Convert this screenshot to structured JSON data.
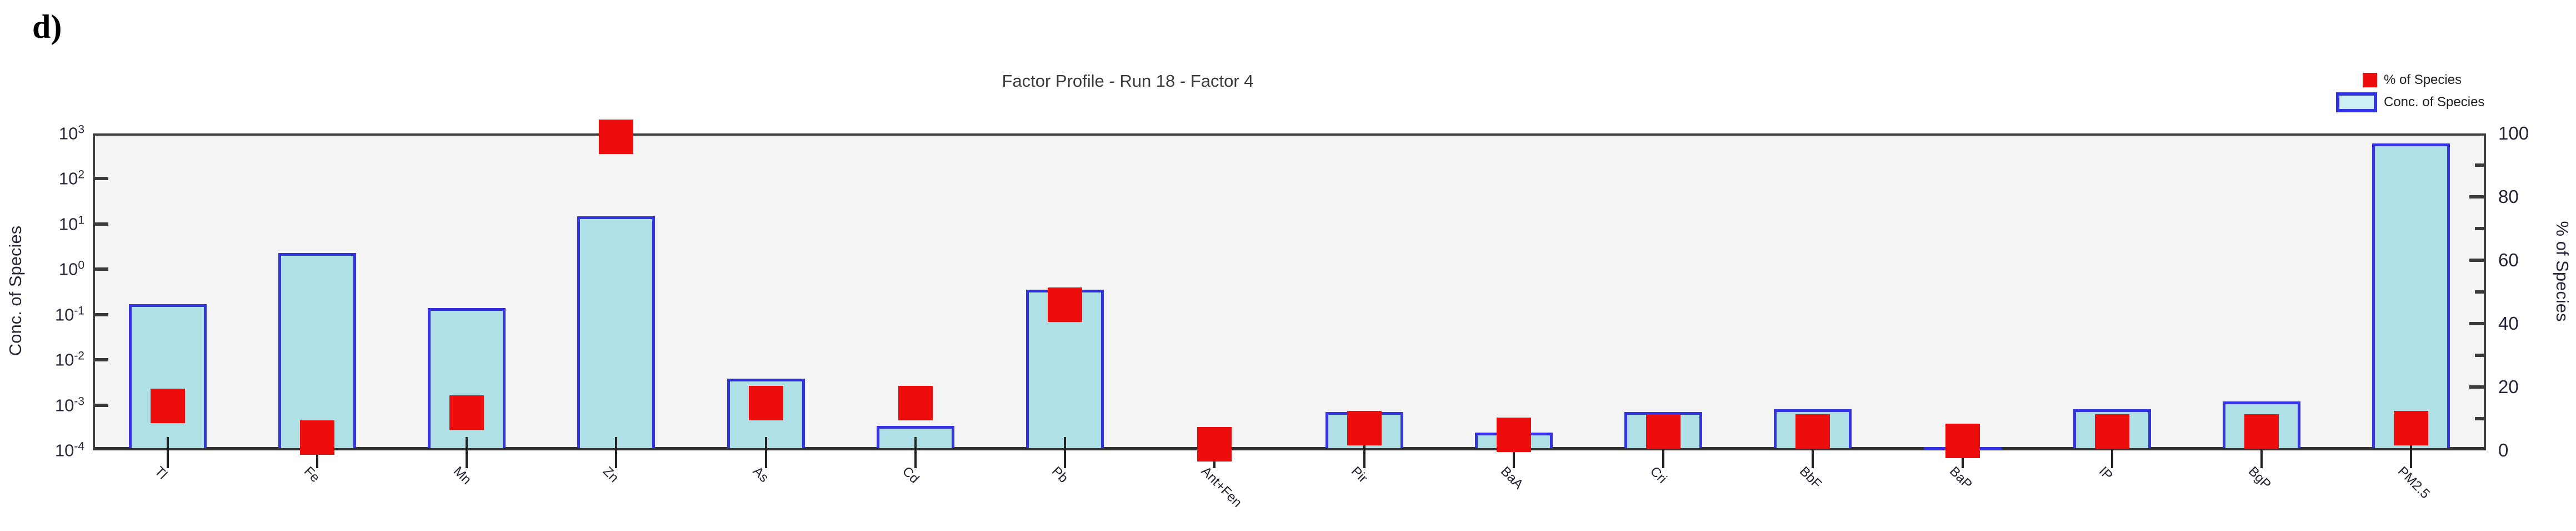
{
  "figure_label": "d)",
  "header": {
    "title": "Factor Profile - Run 18 - Factor 4"
  },
  "legend": {
    "pct_label": "% of Species",
    "conc_label": "Conc. of Species"
  },
  "chart_data": {
    "type": "bar",
    "title": "Factor Profile - Run 18 - Factor 4",
    "categories": [
      "Tl",
      "Fe",
      "Mn",
      "Zn",
      "As",
      "Cd",
      "Pb",
      "Ant+Fen",
      "Pir",
      "BaA",
      "Cri",
      "BbF",
      "BaP",
      "IP",
      "BgP",
      "PM2.5"
    ],
    "series": [
      {
        "name": "Conc. of Species",
        "type": "bar",
        "axis": "left",
        "values": [
          0.17,
          2.3,
          0.14,
          15,
          0.0038,
          0.00035,
          0.35,
          null,
          0.0007,
          0.00025,
          0.0007,
          0.0008,
          0.00012,
          0.0008,
          0.0012,
          600
        ]
      },
      {
        "name": "% of Species",
        "type": "square-marker",
        "axis": "right",
        "values": [
          14,
          4,
          12,
          99,
          15,
          15,
          46,
          2,
          7,
          5,
          6,
          6,
          3,
          6,
          6,
          7
        ]
      }
    ],
    "left_axis": {
      "label": "Conc. of Species",
      "scale": "log",
      "min": 0.0001,
      "max": 1000
    },
    "right_axis": {
      "label": "% of Species",
      "min": 0,
      "max": 100,
      "major_step": 20,
      "minor_step": 10
    },
    "legend_position": "top-right",
    "grid": false,
    "colors": {
      "bar_fill": "#aee0e6",
      "bar_border": "#3333e0",
      "marker": "#ee0d0d",
      "plot_bg": "#f4f4f4",
      "frame": "#3f3f3f"
    }
  }
}
